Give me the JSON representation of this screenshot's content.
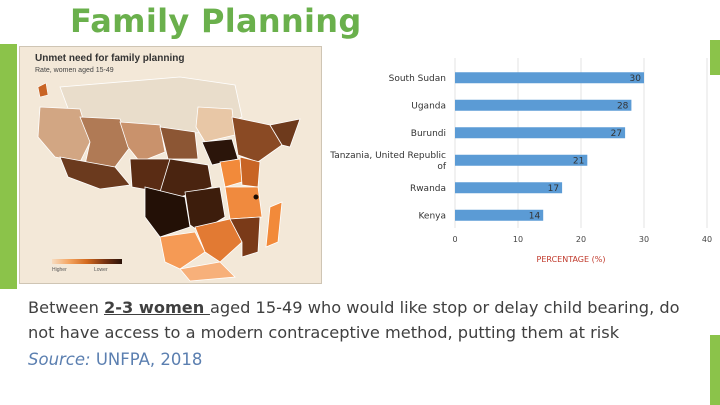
{
  "slide": {
    "title": "Family Planning",
    "body": {
      "before": "Between ",
      "emphasis": "2-3 women ",
      "after": "aged 15-49 who would like stop or delay child bearing, do not have access to a modern contraceptive method, putting them at risk"
    },
    "source_label": "Source:",
    "source_value": " UNFPA, 2018"
  },
  "map": {
    "title": "Unmet need for family planning",
    "subtitle": "Rate, women aged 15-49",
    "legend_low": "Higher",
    "legend_high": "Lower"
  },
  "colors": {
    "title_green": "#6ab04c",
    "bar_blue": "#5b9bd5",
    "axis_title_red": "#c0392b",
    "source_blue": "#5b7fb0"
  },
  "chart_data": {
    "type": "bar",
    "orientation": "horizontal",
    "categories": [
      "South Sudan",
      "Uganda",
      "Burundi",
      "Tanzania, United Republic of",
      "Rwanda",
      "Kenya"
    ],
    "category_lines": [
      [
        "South Sudan"
      ],
      [
        "Uganda"
      ],
      [
        "Burundi"
      ],
      [
        "Tanzania, United Republic",
        "of"
      ],
      [
        "Rwanda"
      ],
      [
        "Kenya"
      ]
    ],
    "values": [
      30,
      28,
      27,
      21,
      17,
      14
    ],
    "xlim": [
      0,
      40
    ],
    "xticks": [
      0,
      10,
      20,
      30,
      40
    ],
    "xlabel": "PERCENTAGE (%)",
    "grid": true,
    "bar_color": "#5b9bd5"
  }
}
